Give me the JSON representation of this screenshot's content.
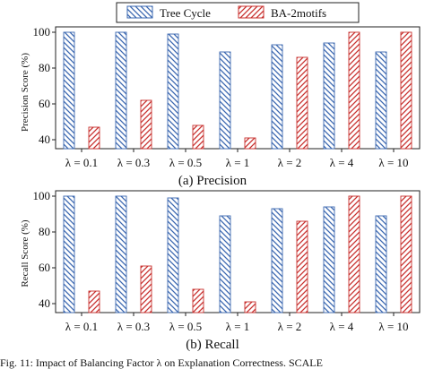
{
  "legend": {
    "items": [
      {
        "label": "Tree Cycle",
        "color": "#3a67b0",
        "pattern": "hatch-back"
      },
      {
        "label": "BA-2motifs",
        "color": "#c8302e",
        "pattern": "hatch-fwd"
      }
    ],
    "placement": "top-center"
  },
  "caption_bottom": "Fig. 11:  Impact of Balancing Factor λ on Explanation Correctness. SCALE",
  "chart_data": [
    {
      "type": "bar",
      "caption": "(a) Precision",
      "ylabel": "Precision Score (%)",
      "ylim": [
        35,
        103
      ],
      "yticks": [
        40,
        60,
        80,
        100
      ],
      "categories": [
        "λ = 0.1",
        "λ = 0.3",
        "λ = 0.5",
        "λ = 1",
        "λ = 2",
        "λ = 4",
        "λ = 10"
      ],
      "series": [
        {
          "name": "Tree Cycle",
          "values": [
            100,
            100,
            99,
            89,
            93,
            94,
            89
          ]
        },
        {
          "name": "BA-2motifs",
          "values": [
            47,
            62,
            48,
            41,
            86,
            100,
            100
          ]
        }
      ],
      "grid": false
    },
    {
      "type": "bar",
      "caption": "(b) Recall",
      "ylabel": "Recall Score (%)",
      "ylim": [
        35,
        103
      ],
      "yticks": [
        40,
        60,
        80,
        100
      ],
      "categories": [
        "λ = 0.1",
        "λ = 0.3",
        "λ = 0.5",
        "λ = 1",
        "λ = 2",
        "λ = 4",
        "λ = 10"
      ],
      "series": [
        {
          "name": "Tree Cycle",
          "values": [
            100,
            100,
            99,
            89,
            93,
            94,
            89
          ]
        },
        {
          "name": "BA-2motifs",
          "values": [
            47,
            61,
            48,
            41,
            86,
            100,
            100
          ]
        }
      ],
      "grid": false
    }
  ]
}
